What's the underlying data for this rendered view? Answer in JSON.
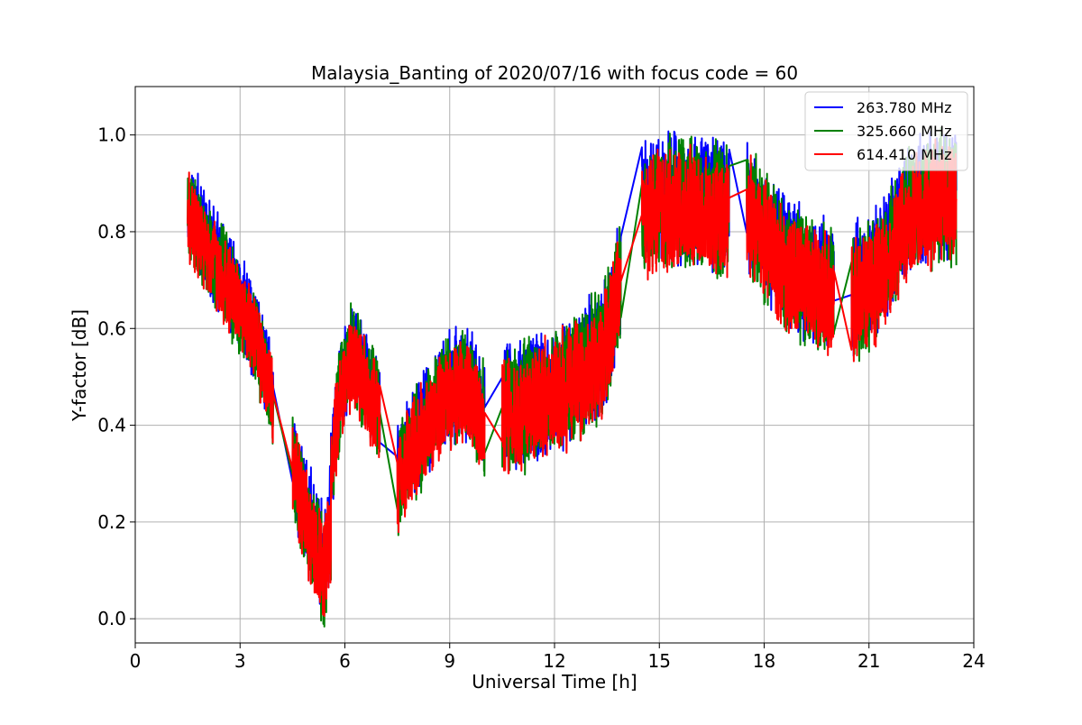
{
  "chart_data": {
    "type": "line",
    "title": "Malaysia_Banting of 2020/07/16 with focus code = 60",
    "xlabel": "Universal Time [h]",
    "ylabel": "Y-factor [dB]",
    "xlim": [
      0,
      24
    ],
    "ylim": [
      -0.05,
      1.1
    ],
    "xticks": [
      0,
      3,
      6,
      9,
      12,
      15,
      18,
      21,
      24
    ],
    "yticks": [
      0.0,
      0.2,
      0.4,
      0.6,
      0.8,
      1.0
    ],
    "ytick_labels": [
      "0.0",
      "0.2",
      "0.4",
      "0.6",
      "0.8",
      "1.0"
    ],
    "grid": true,
    "legend_position": "top-right",
    "series": [
      {
        "name": "263.780 MHz",
        "color": "#0000ff",
        "segments": [
          {
            "x": [
              1.5,
              2.0,
              2.5,
              3.0,
              3.5,
              3.95
            ],
            "y": [
              0.86,
              0.78,
              0.72,
              0.66,
              0.58,
              0.45
            ],
            "amplitude": 0.11
          },
          {
            "x": [
              4.5,
              4.8,
              5.1,
              5.4,
              5.6
            ],
            "y": [
              0.33,
              0.24,
              0.17,
              0.11,
              0.2
            ],
            "amplitude": 0.13
          },
          {
            "x": [
              5.6,
              5.9,
              6.2,
              6.6,
              7.0
            ],
            "y": [
              0.32,
              0.49,
              0.56,
              0.5,
              0.43
            ],
            "amplitude": 0.12
          },
          {
            "x": [
              7.5,
              8.0,
              8.5,
              9.0,
              9.5,
              10.0
            ],
            "y": [
              0.3,
              0.37,
              0.43,
              0.48,
              0.49,
              0.42
            ],
            "amplitude": 0.13
          },
          {
            "x": [
              10.5,
              11.2,
              12.0,
              12.8,
              13.4,
              13.9
            ],
            "y": [
              0.44,
              0.45,
              0.48,
              0.52,
              0.56,
              0.72
            ],
            "amplitude": 0.15
          },
          {
            "x": [
              14.5,
              15.0,
              15.5,
              16.0,
              16.5,
              17.0
            ],
            "y": [
              0.85,
              0.87,
              0.87,
              0.87,
              0.86,
              0.85
            ],
            "amplitude": 0.15
          },
          {
            "x": [
              17.5,
              18.0,
              18.5,
              19.0,
              19.5,
              20.0
            ],
            "y": [
              0.86,
              0.8,
              0.75,
              0.72,
              0.7,
              0.68
            ],
            "amplitude": 0.15
          },
          {
            "x": [
              20.5,
              21.0,
              21.5,
              22.0,
              22.5,
              23.0,
              23.5
            ],
            "y": [
              0.68,
              0.7,
              0.75,
              0.83,
              0.87,
              0.88,
              0.88
            ],
            "amplitude": 0.15
          }
        ]
      },
      {
        "name": "325.660 MHz",
        "color": "#008000",
        "segments": [
          {
            "x": [
              1.5,
              2.0,
              2.5,
              3.0,
              3.5,
              3.95
            ],
            "y": [
              0.85,
              0.77,
              0.71,
              0.65,
              0.57,
              0.44
            ],
            "amplitude": 0.11
          },
          {
            "x": [
              4.5,
              4.8,
              5.1,
              5.4,
              5.6
            ],
            "y": [
              0.32,
              0.23,
              0.16,
              0.1,
              0.19
            ],
            "amplitude": 0.13
          },
          {
            "x": [
              5.6,
              5.9,
              6.2,
              6.6,
              7.0
            ],
            "y": [
              0.31,
              0.48,
              0.55,
              0.49,
              0.42
            ],
            "amplitude": 0.12
          },
          {
            "x": [
              7.5,
              8.0,
              8.5,
              9.0,
              9.5,
              10.0
            ],
            "y": [
              0.29,
              0.36,
              0.42,
              0.47,
              0.48,
              0.41
            ],
            "amplitude": 0.13
          },
          {
            "x": [
              10.5,
              11.2,
              12.0,
              12.8,
              13.4,
              13.9
            ],
            "y": [
              0.43,
              0.44,
              0.47,
              0.51,
              0.55,
              0.71
            ],
            "amplitude": 0.15
          },
          {
            "x": [
              14.5,
              15.0,
              15.5,
              16.0,
              16.5,
              17.0
            ],
            "y": [
              0.84,
              0.86,
              0.86,
              0.86,
              0.85,
              0.84
            ],
            "amplitude": 0.15
          },
          {
            "x": [
              17.5,
              18.0,
              18.5,
              19.0,
              19.5,
              20.0
            ],
            "y": [
              0.85,
              0.79,
              0.74,
              0.71,
              0.69,
              0.67
            ],
            "amplitude": 0.15
          },
          {
            "x": [
              20.5,
              21.0,
              21.5,
              22.0,
              22.5,
              23.0,
              23.5
            ],
            "y": [
              0.67,
              0.69,
              0.74,
              0.82,
              0.86,
              0.87,
              0.87
            ],
            "amplitude": 0.15
          }
        ]
      },
      {
        "name": "614.410 MHz",
        "color": "#ff0000",
        "segments": [
          {
            "x": [
              1.5,
              2.0,
              2.5,
              3.0,
              3.5,
              3.95
            ],
            "y": [
              0.84,
              0.76,
              0.7,
              0.64,
              0.56,
              0.44
            ],
            "amplitude": 0.1
          },
          {
            "x": [
              4.5,
              4.8,
              5.1,
              5.4,
              5.6
            ],
            "y": [
              0.31,
              0.23,
              0.16,
              0.1,
              0.18
            ],
            "amplitude": 0.12
          },
          {
            "x": [
              5.6,
              5.9,
              6.2,
              6.6,
              7.0
            ],
            "y": [
              0.31,
              0.48,
              0.54,
              0.48,
              0.42
            ],
            "amplitude": 0.11
          },
          {
            "x": [
              7.5,
              8.0,
              8.5,
              9.0,
              9.5,
              10.0
            ],
            "y": [
              0.28,
              0.35,
              0.41,
              0.46,
              0.47,
              0.4
            ],
            "amplitude": 0.12
          },
          {
            "x": [
              10.5,
              11.2,
              12.0,
              12.8,
              13.4,
              13.9
            ],
            "y": [
              0.42,
              0.43,
              0.46,
              0.5,
              0.54,
              0.7
            ],
            "amplitude": 0.14
          },
          {
            "x": [
              14.5,
              15.0,
              15.5,
              16.0,
              16.5,
              17.0
            ],
            "y": [
              0.83,
              0.85,
              0.85,
              0.85,
              0.84,
              0.83
            ],
            "amplitude": 0.14
          },
          {
            "x": [
              17.5,
              18.0,
              18.5,
              19.0,
              19.5,
              20.0
            ],
            "y": [
              0.84,
              0.78,
              0.73,
              0.7,
              0.68,
              0.66
            ],
            "amplitude": 0.14
          },
          {
            "x": [
              20.5,
              21.0,
              21.5,
              22.0,
              22.5,
              23.0,
              23.5
            ],
            "y": [
              0.66,
              0.68,
              0.73,
              0.81,
              0.85,
              0.86,
              0.86
            ],
            "amplitude": 0.14
          }
        ]
      }
    ]
  }
}
